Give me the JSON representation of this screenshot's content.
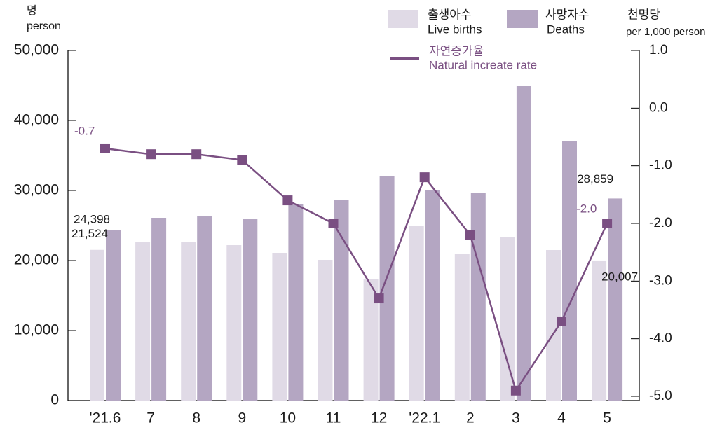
{
  "chart_data": {
    "type": "bar_line",
    "left_unit_ko": "명",
    "left_unit_en": "person",
    "right_unit_ko": "천명당",
    "right_unit_en": "per 1,000 person",
    "categories": [
      "'21.6",
      "7",
      "8",
      "9",
      "10",
      "11",
      "12",
      "'22.1",
      "2",
      "3",
      "4",
      "5"
    ],
    "series": [
      {
        "name": "출생아수",
        "name_en": "Live births",
        "color": "#e0dae6",
        "type": "bar",
        "values": [
          21524,
          22700,
          22600,
          22200,
          21100,
          20100,
          17400,
          25000,
          21000,
          23300,
          21500,
          20007
        ],
        "value_labels": [
          "21,524",
          null,
          null,
          null,
          null,
          null,
          null,
          null,
          null,
          null,
          null,
          "20,007"
        ]
      },
      {
        "name": "사망자수",
        "name_en": "Deaths",
        "color": "#b4a6c2",
        "type": "bar",
        "values": [
          24398,
          26100,
          26300,
          26000,
          28100,
          28700,
          32000,
          30100,
          29600,
          44900,
          37100,
          28859
        ],
        "value_labels": [
          "24,398",
          null,
          null,
          null,
          null,
          null,
          null,
          null,
          null,
          null,
          null,
          "28,859"
        ]
      },
      {
        "name": "자연증가율",
        "name_en": "Natural increate rate",
        "color": "#7a4f82",
        "type": "line",
        "axis": "y2",
        "values": [
          -0.7,
          -0.8,
          -0.8,
          -0.9,
          -1.6,
          -2.0,
          -3.3,
          -1.2,
          -2.2,
          -4.9,
          -3.7,
          -2.0
        ],
        "value_labels": [
          "-0.7",
          null,
          null,
          null,
          null,
          null,
          null,
          null,
          null,
          null,
          null,
          "-2.0"
        ]
      }
    ],
    "ylim": [
      0,
      50000
    ],
    "yticks": [
      0,
      {
        "value": 10000,
        "label": "10,000"
      },
      {
        "value": 20000,
        "label": "20,000"
      },
      {
        "value": 30000,
        "label": "30,000"
      },
      {
        "value": 40000,
        "label": "40,000"
      },
      {
        "value": 50000,
        "label": "50,000"
      }
    ],
    "y2lim": [
      -5,
      1
    ],
    "y2ticks": [
      {
        "value": -5,
        "label": "-5.0"
      },
      {
        "value": -4,
        "label": "-4.0"
      },
      {
        "value": -3,
        "label": "-3.0"
      },
      {
        "value": -2,
        "label": "-2.0"
      },
      {
        "value": -1,
        "label": "-1.0"
      },
      {
        "value": 0,
        "label": "0.0"
      },
      {
        "value": 1,
        "label": "1.0"
      }
    ]
  }
}
